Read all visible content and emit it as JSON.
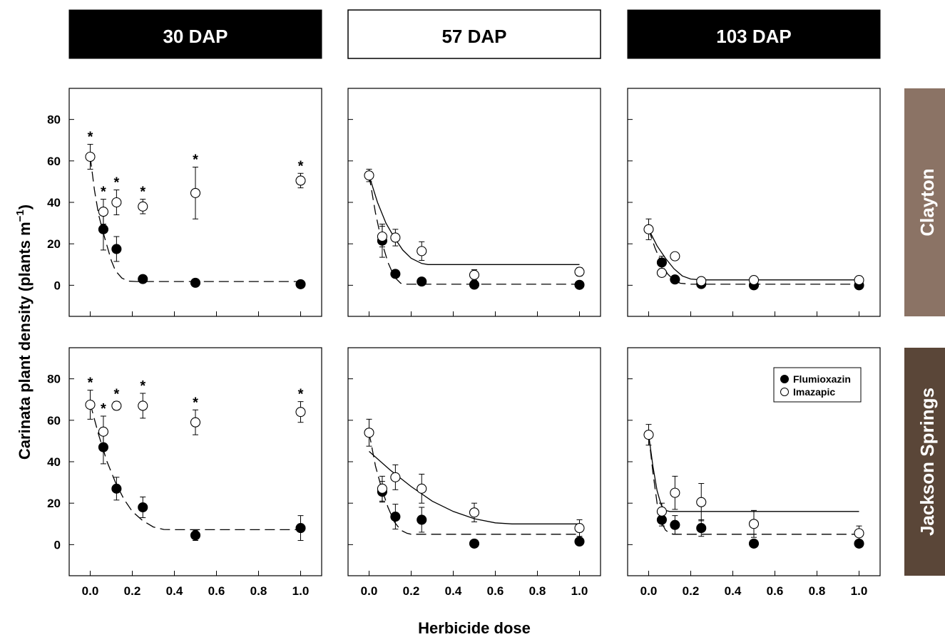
{
  "figure": {
    "x_axis_label": "Herbicide dose",
    "y_axis_label": "Carinata plant density (plants m",
    "y_axis_unit_sup": "−1",
    "y_axis_close": ")"
  },
  "columns": [
    "30 DAP",
    "57 DAP",
    "103 DAP"
  ],
  "rows": [
    "Clayton",
    "Jackson Springs"
  ],
  "legend": {
    "flumioxazin": "Flumioxazin",
    "imazapic": "Imazapic"
  },
  "colors": {
    "col_header_dark": "#000000",
    "col_header_light": "#ffffff",
    "row_clayton": "#8b7365",
    "row_jackson": "#5a4638",
    "flumioxazin_marker": "#000000",
    "imazapic_marker": "#ffffff"
  },
  "chart_data": {
    "type": "scatter",
    "xlim": [
      -0.1,
      1.1
    ],
    "ylim": [
      -15,
      95
    ],
    "x_ticks": [
      "0.0",
      "0.2",
      "0.4",
      "0.6",
      "0.8",
      "1.0"
    ],
    "y_ticks": [
      "0",
      "20",
      "40",
      "60",
      "80"
    ],
    "significance_marker": "*",
    "x": [
      0,
      0.0625,
      0.125,
      0.25,
      0.5,
      1.0
    ],
    "panels": [
      {
        "column": "30 DAP",
        "row": "Clayton",
        "flumioxazin": {
          "y": [
            null,
            27,
            17.5,
            3,
            1.2,
            0.5
          ],
          "err": [
            null,
            10,
            6,
            0,
            0,
            0
          ]
        },
        "imazapic": {
          "y": [
            62,
            35.5,
            40,
            38,
            44.5,
            50.5
          ],
          "err": [
            6,
            6,
            6,
            3.5,
            12.5,
            3.5
          ]
        },
        "sig": [
          true,
          true,
          true,
          true,
          true,
          true
        ],
        "fits": [
          {
            "series": "Flumioxazin",
            "style": "dashed",
            "curve": [
              [
                0,
                62
              ],
              [
                0.02,
                46
              ],
              [
                0.04,
                34
              ],
              [
                0.06,
                26
              ],
              [
                0.08,
                19
              ],
              [
                0.1,
                12
              ],
              [
                0.12,
                7
              ],
              [
                0.15,
                3.5
              ],
              [
                0.18,
                2
              ],
              [
                0.22,
                1.8
              ],
              [
                1.0,
                1.8
              ]
            ]
          }
        ]
      },
      {
        "column": "57 DAP",
        "row": "Clayton",
        "flumioxazin": {
          "y": [
            null,
            21.5,
            5.5,
            1.8,
            0.3,
            0.2
          ],
          "err": [
            null,
            8,
            0,
            0,
            0,
            0
          ]
        },
        "imazapic": {
          "y": [
            53,
            23.5,
            23,
            16.5,
            5,
            6.5
          ],
          "err": [
            3,
            5,
            4,
            4.5,
            2.5,
            2
          ]
        },
        "sig": [
          false,
          false,
          false,
          false,
          false,
          false
        ],
        "fits": [
          {
            "series": "Flumioxazin",
            "style": "dashed",
            "curve": [
              [
                0,
                53
              ],
              [
                0.03,
                35
              ],
              [
                0.06,
                21
              ],
              [
                0.09,
                11
              ],
              [
                0.12,
                4
              ],
              [
                0.15,
                1
              ],
              [
                0.18,
                0.5
              ],
              [
                0.22,
                0.5
              ],
              [
                1.0,
                0.5
              ]
            ]
          },
          {
            "series": "Imazapic",
            "style": "solid",
            "curve": [
              [
                0,
                53
              ],
              [
                0.04,
                40
              ],
              [
                0.08,
                30
              ],
              [
                0.12,
                23
              ],
              [
                0.16,
                17
              ],
              [
                0.2,
                13
              ],
              [
                0.25,
                10.5
              ],
              [
                0.28,
                10
              ],
              [
                1.0,
                10
              ]
            ]
          }
        ]
      },
      {
        "column": "103 DAP",
        "row": "Clayton",
        "flumioxazin": {
          "y": [
            null,
            11,
            2.8,
            0.6,
            0,
            0
          ],
          "err": [
            null,
            3,
            0,
            0,
            0,
            0
          ]
        },
        "imazapic": {
          "y": [
            27,
            6,
            14,
            2,
            2.5,
            2.5
          ],
          "err": [
            5,
            0,
            0,
            0,
            0,
            0
          ]
        },
        "sig": [
          false,
          false,
          false,
          false,
          false,
          false
        ],
        "fits": [
          {
            "series": "Flumioxazin",
            "style": "dashed",
            "curve": [
              [
                0,
                27
              ],
              [
                0.03,
                18
              ],
              [
                0.06,
                11
              ],
              [
                0.09,
                5.5
              ],
              [
                0.12,
                2.5
              ],
              [
                0.15,
                1
              ],
              [
                0.2,
                0.5
              ],
              [
                1.0,
                0.5
              ]
            ]
          },
          {
            "series": "Imazapic",
            "style": "solid",
            "curve": [
              [
                0,
                27
              ],
              [
                0.04,
                19
              ],
              [
                0.08,
                13
              ],
              [
                0.12,
                8
              ],
              [
                0.16,
                4.5
              ],
              [
                0.2,
                3
              ],
              [
                0.25,
                2.6
              ],
              [
                1.0,
                2.6
              ]
            ]
          }
        ]
      },
      {
        "column": "30 DAP",
        "row": "Jackson Springs",
        "flumioxazin": {
          "y": [
            null,
            47,
            27,
            18,
            4.5,
            8
          ],
          "err": [
            null,
            8,
            5.5,
            5,
            2.5,
            6
          ]
        },
        "imazapic": {
          "y": [
            67.5,
            54.5,
            67,
            67,
            59,
            64
          ],
          "err": [
            7,
            7.5,
            2,
            6,
            6,
            5
          ]
        },
        "sig": [
          true,
          true,
          true,
          true,
          true,
          true
        ],
        "fits": [
          {
            "series": "Flumioxazin",
            "style": "dashed",
            "curve": [
              [
                0,
                68
              ],
              [
                0.04,
                53
              ],
              [
                0.08,
                40
              ],
              [
                0.12,
                30
              ],
              [
                0.16,
                22
              ],
              [
                0.2,
                16
              ],
              [
                0.25,
                11.5
              ],
              [
                0.3,
                8.5
              ],
              [
                0.35,
                7.3
              ],
              [
                0.4,
                7.2
              ],
              [
                1.0,
                7.2
              ]
            ]
          }
        ]
      },
      {
        "column": "57 DAP",
        "row": "Jackson Springs",
        "flumioxazin": {
          "y": [
            null,
            25.5,
            13.5,
            12,
            0.5,
            1.5
          ],
          "err": [
            null,
            5,
            6,
            6,
            0,
            1.5
          ]
        },
        "imazapic": {
          "y": [
            54,
            27,
            32.5,
            27,
            15.5,
            8
          ],
          "err": [
            6.5,
            6,
            6,
            7,
            4.5,
            4
          ]
        },
        "sig": [
          false,
          false,
          false,
          false,
          false,
          false
        ],
        "fits": [
          {
            "series": "Flumioxazin",
            "style": "dashed",
            "curve": [
              [
                0,
                54
              ],
              [
                0.03,
                38
              ],
              [
                0.06,
                27
              ],
              [
                0.09,
                18
              ],
              [
                0.12,
                11
              ],
              [
                0.15,
                7
              ],
              [
                0.18,
                5.5
              ],
              [
                0.2,
                5
              ],
              [
                1.0,
                5
              ]
            ]
          },
          {
            "series": "Imazapic",
            "style": "solid",
            "curve": [
              [
                0,
                45
              ],
              [
                0.1,
                36
              ],
              [
                0.2,
                28
              ],
              [
                0.3,
                21
              ],
              [
                0.4,
                16
              ],
              [
                0.5,
                12.5
              ],
              [
                0.6,
                10.5
              ],
              [
                0.68,
                10
              ],
              [
                1.0,
                10
              ]
            ]
          }
        ]
      },
      {
        "column": "103 DAP",
        "row": "Jackson Springs",
        "flumioxazin": {
          "y": [
            null,
            12,
            9.5,
            8,
            0.5,
            0.5
          ],
          "err": [
            null,
            3,
            4.5,
            4,
            0,
            0
          ]
        },
        "imazapic": {
          "y": [
            53,
            16,
            25,
            20.5,
            10,
            5.5
          ],
          "err": [
            5,
            4,
            8,
            9,
            6.5,
            3.5
          ]
        },
        "sig": [
          false,
          false,
          false,
          false,
          false,
          false
        ],
        "fits": [
          {
            "series": "Flumioxazin",
            "style": "dashed",
            "curve": [
              [
                0,
                53
              ],
              [
                0.02,
                35
              ],
              [
                0.04,
                20
              ],
              [
                0.06,
                11
              ],
              [
                0.08,
                7
              ],
              [
                0.1,
                5.5
              ],
              [
                0.12,
                5
              ],
              [
                1.0,
                5
              ]
            ]
          },
          {
            "series": "Imazapic",
            "style": "solid",
            "curve": [
              [
                0,
                53
              ],
              [
                0.02,
                38
              ],
              [
                0.04,
                26
              ],
              [
                0.06,
                19
              ],
              [
                0.08,
                16.5
              ],
              [
                0.1,
                16
              ],
              [
                1.0,
                16
              ]
            ]
          }
        ]
      }
    ]
  }
}
